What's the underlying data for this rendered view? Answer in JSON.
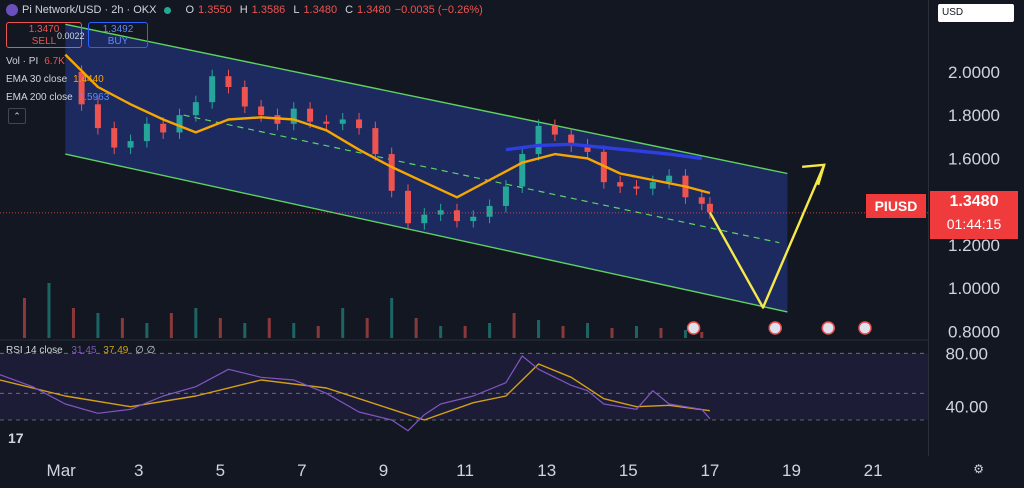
{
  "header": {
    "title": "Pi Network/USD · 2h · OKX",
    "open_label": "O",
    "open": "1.3550",
    "high_label": "H",
    "high": "1.3586",
    "low_label": "L",
    "low": "1.3480",
    "close_label": "C",
    "close": "1.3480",
    "change": "−0.0035 (−0.26%)"
  },
  "trade": {
    "sell_price": "1.3470",
    "sell_label": "SELL",
    "spread": "0.0022",
    "buy_price": "1.3492",
    "buy_label": "BUY"
  },
  "indicators": [
    {
      "name": "Vol · PI",
      "value": "6.7K",
      "color": "#ef5350"
    },
    {
      "name": "EMA 30 close",
      "value": "1.4440",
      "color": "#f7a600"
    },
    {
      "name": "EMA 200 close",
      "value": "1.5963",
      "color": "#2962ff"
    }
  ],
  "currency_select": "USD",
  "price_label": {
    "ticker": "PIUSD",
    "price": "1.3480",
    "countdown": "01:44:15"
  },
  "rsi": {
    "label": "RSI 14 close",
    "value1": "31.45",
    "value2": "37.49",
    "levels": "∅ ∅"
  },
  "colors": {
    "bg": "#131722",
    "up": "#26a69a",
    "down": "#ef5350",
    "ema30": "#f7a600",
    "ema200": "#2f3ee0",
    "channel": "#5fd35f",
    "channel_fill": "#1f2e6b",
    "projection": "#f5e94a",
    "rsi_line": "#7e57c2",
    "rsi_ma": "#d4a017"
  },
  "chart_data": {
    "type": "line",
    "x_ticks": [
      "Mar",
      "3",
      "5",
      "7",
      "9",
      "11",
      "13",
      "15",
      "17",
      "19",
      "21"
    ],
    "y_ticks": [
      "2.0000",
      "1.8000",
      "1.6000",
      "1.4000",
      "1.2000",
      "1.0000",
      "0.8000"
    ],
    "ylim": [
      0.76,
      2.24
    ],
    "rsi_ticks": [
      "80.00",
      "40.00"
    ],
    "rsi_ylim": [
      15,
      90
    ],
    "series": [
      {
        "name": "EMA 30 close",
        "x": [
          1.6,
          2.4,
          3.2,
          4.0,
          4.8,
          5.6,
          6.4,
          7.2,
          8.0,
          8.8,
          9.6,
          10.4,
          11.2,
          12.0,
          12.8,
          13.6,
          14.4,
          15.2,
          16.0,
          16.8,
          17.4
        ],
        "values": [
          2.08,
          1.93,
          1.85,
          1.78,
          1.72,
          1.78,
          1.79,
          1.78,
          1.73,
          1.64,
          1.56,
          1.49,
          1.42,
          1.5,
          1.58,
          1.62,
          1.6,
          1.53,
          1.5,
          1.47,
          1.44
        ]
      },
      {
        "name": "EMA 200 close",
        "x": [
          12.4,
          13.2,
          14.0,
          14.8,
          15.6,
          16.4,
          17.2
        ],
        "values": [
          1.64,
          1.66,
          1.665,
          1.65,
          1.635,
          1.62,
          1.6
        ]
      },
      {
        "name": "projection",
        "x": [
          17.4,
          18.7,
          20.2
        ],
        "values": [
          1.35,
          0.91,
          1.57
        ]
      }
    ],
    "channel": {
      "upper": [
        [
          1.6,
          2.22
        ],
        [
          19.3,
          1.53
        ]
      ],
      "lower": [
        [
          1.6,
          1.62
        ],
        [
          19.3,
          0.89
        ]
      ],
      "mid": [
        [
          4.5,
          1.8
        ],
        [
          19.1,
          1.21
        ]
      ]
    },
    "close_series": {
      "x": [
        1.6,
        2.0,
        2.4,
        2.8,
        3.2,
        3.6,
        4.0,
        4.4,
        4.8,
        5.2,
        5.6,
        6.0,
        6.4,
        6.8,
        7.2,
        7.6,
        8.0,
        8.4,
        8.8,
        9.2,
        9.6,
        10.0,
        10.4,
        10.8,
        11.2,
        11.6,
        12.0,
        12.4,
        12.8,
        13.2,
        13.6,
        14.0,
        14.4,
        14.8,
        15.2,
        15.6,
        16.0,
        16.4,
        16.8,
        17.2,
        17.4
      ],
      "values": [
        2.0,
        1.85,
        1.74,
        1.65,
        1.68,
        1.76,
        1.72,
        1.8,
        1.86,
        1.98,
        1.93,
        1.84,
        1.8,
        1.76,
        1.83,
        1.77,
        1.76,
        1.78,
        1.74,
        1.62,
        1.45,
        1.3,
        1.34,
        1.36,
        1.31,
        1.33,
        1.38,
        1.47,
        1.62,
        1.75,
        1.71,
        1.66,
        1.63,
        1.49,
        1.47,
        1.46,
        1.49,
        1.52,
        1.42,
        1.39,
        1.35
      ]
    },
    "rsi_series": {
      "x": [
        0.0,
        0.8,
        1.6,
        2.4,
        3.2,
        4.0,
        4.8,
        5.6,
        6.4,
        7.2,
        8.0,
        8.8,
        9.6,
        10.0,
        10.4,
        10.8,
        11.6,
        12.4,
        12.8,
        13.2,
        13.6,
        14.0,
        14.4,
        14.8,
        15.6,
        16.0,
        16.4,
        16.8,
        17.2,
        17.4
      ],
      "values": [
        64,
        55,
        42,
        35,
        38,
        48,
        55,
        68,
        62,
        60,
        50,
        36,
        30,
        22,
        34,
        42,
        48,
        58,
        78,
        68,
        62,
        56,
        52,
        42,
        38,
        52,
        42,
        40,
        38,
        31
      ]
    },
    "rsi_ma": {
      "x": [
        0.0,
        1.6,
        3.2,
        4.8,
        6.4,
        8.0,
        9.6,
        10.4,
        11.6,
        12.4,
        13.2,
        14.0,
        14.8,
        15.6,
        16.4,
        17.4
      ],
      "values": [
        60,
        48,
        40,
        48,
        60,
        54,
        38,
        30,
        43,
        48,
        72,
        62,
        46,
        40,
        41,
        37
      ]
    },
    "volume": {
      "x": [
        0.6,
        1.2,
        1.8,
        2.4,
        3.0,
        3.6,
        4.2,
        4.8,
        5.4,
        6.0,
        6.6,
        7.2,
        7.8,
        8.4,
        9.0,
        9.6,
        10.2,
        10.8,
        11.4,
        12.0,
        12.6,
        13.2,
        13.8,
        14.4,
        15.0,
        15.6,
        16.2,
        16.8,
        17.2
      ],
      "values": [
        40,
        55,
        30,
        25,
        20,
        15,
        25,
        30,
        20,
        15,
        20,
        15,
        12,
        30,
        20,
        40,
        20,
        12,
        12,
        15,
        25,
        18,
        12,
        15,
        10,
        12,
        10,
        8,
        6
      ]
    }
  }
}
